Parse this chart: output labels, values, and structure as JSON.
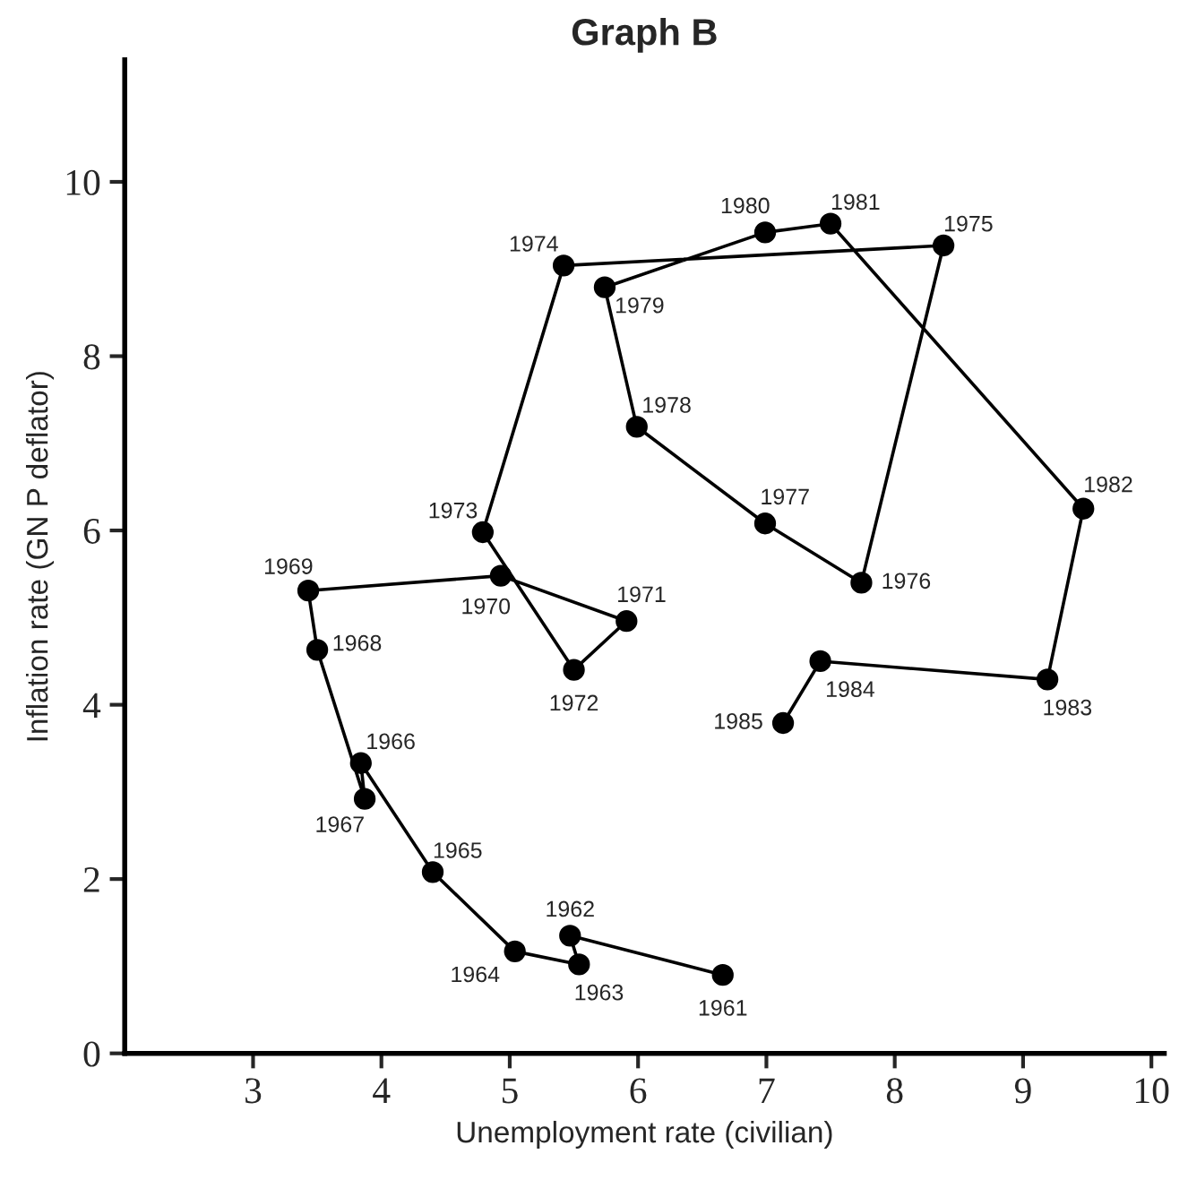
{
  "chart_data": {
    "type": "line",
    "title": "Graph B",
    "xlabel": "Unemployment rate (civilian)",
    "ylabel": "Inflation rate (GN P deflator)",
    "xlim": [
      2,
      10.1
    ],
    "ylim": [
      0,
      11.4
    ],
    "xticks": [
      3,
      4,
      5,
      6,
      7,
      8,
      9,
      10
    ],
    "yticks": [
      0,
      2,
      4,
      6,
      8,
      10
    ],
    "grid": false,
    "legend": false,
    "marker": "circle",
    "line_style": "solid",
    "series": [
      {
        "color": "#000000",
        "x": [
          6.66,
          5.47,
          5.54,
          5.04,
          4.4,
          3.84,
          3.87,
          3.5,
          3.43,
          4.93,
          5.91,
          5.5,
          4.79,
          5.42,
          8.38,
          7.74,
          6.99,
          5.99,
          5.74,
          6.99,
          7.5,
          9.47,
          9.19,
          7.42,
          7.13
        ],
        "values": [
          0.9,
          1.35,
          1.02,
          1.17,
          2.08,
          3.33,
          2.92,
          4.63,
          5.31,
          5.48,
          4.96,
          4.4,
          5.98,
          9.04,
          9.27,
          5.4,
          6.08,
          7.19,
          8.79,
          9.42,
          9.52,
          6.25,
          4.29,
          4.5,
          3.79
        ]
      }
    ],
    "annotations": [
      {
        "text": "1961",
        "x": 6.66,
        "y": 0.9
      },
      {
        "text": "1962",
        "x": 5.47,
        "y": 1.35
      },
      {
        "text": "1963",
        "x": 5.54,
        "y": 1.02
      },
      {
        "text": "1964",
        "x": 5.04,
        "y": 1.17
      },
      {
        "text": "1965",
        "x": 4.4,
        "y": 2.08
      },
      {
        "text": "1966",
        "x": 3.84,
        "y": 3.33
      },
      {
        "text": "1967",
        "x": 3.87,
        "y": 2.92
      },
      {
        "text": "1968",
        "x": 3.5,
        "y": 4.63
      },
      {
        "text": "1969",
        "x": 3.43,
        "y": 5.31
      },
      {
        "text": "1970",
        "x": 4.93,
        "y": 5.48
      },
      {
        "text": "1971",
        "x": 5.91,
        "y": 4.96
      },
      {
        "text": "1972",
        "x": 5.5,
        "y": 4.4
      },
      {
        "text": "1973",
        "x": 4.79,
        "y": 5.98
      },
      {
        "text": "1974",
        "x": 5.42,
        "y": 9.04
      },
      {
        "text": "1975",
        "x": 8.38,
        "y": 9.27
      },
      {
        "text": "1976",
        "x": 7.74,
        "y": 5.4
      },
      {
        "text": "1977",
        "x": 6.99,
        "y": 6.08
      },
      {
        "text": "1978",
        "x": 5.99,
        "y": 7.19
      },
      {
        "text": "1979",
        "x": 5.74,
        "y": 8.79
      },
      {
        "text": "1980",
        "x": 6.99,
        "y": 9.42
      },
      {
        "text": "1981",
        "x": 7.5,
        "y": 9.52
      },
      {
        "text": "1982",
        "x": 9.47,
        "y": 6.25
      },
      {
        "text": "1983",
        "x": 9.19,
        "y": 4.29
      },
      {
        "text": "1984",
        "x": 7.42,
        "y": 4.5
      },
      {
        "text": "1985",
        "x": 7.13,
        "y": 3.79
      }
    ]
  }
}
